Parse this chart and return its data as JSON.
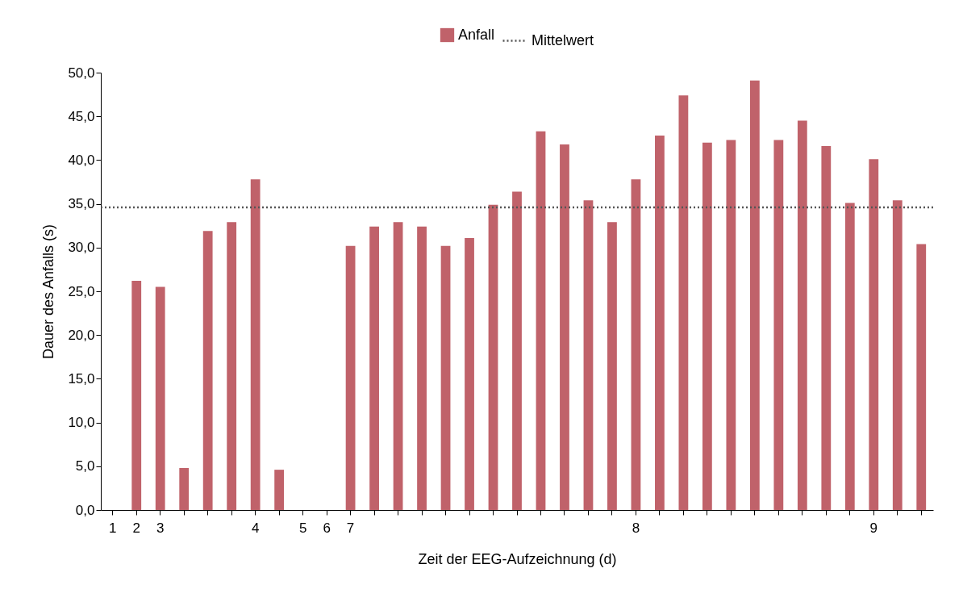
{
  "chart_data": {
    "type": "bar",
    "xlabel": "Zeit der EEG-Aufzeichnung (d)",
    "ylabel": "Dauer des Anfalls (s)",
    "categories": [
      "1",
      "2",
      "3",
      null,
      null,
      null,
      "4",
      null,
      "5",
      "6",
      "7",
      null,
      null,
      null,
      null,
      null,
      null,
      null,
      null,
      null,
      null,
      null,
      "8",
      null,
      null,
      null,
      null,
      null,
      null,
      null,
      null,
      null,
      "9",
      null,
      null
    ],
    "series": [
      {
        "name": "Anfall",
        "color": "#c0626a",
        "values": [
          0,
          26.2,
          25.5,
          4.8,
          31.9,
          32.9,
          37.8,
          4.6,
          0,
          0,
          30.2,
          32.4,
          32.9,
          32.4,
          30.2,
          31.1,
          34.9,
          36.4,
          43.3,
          41.8,
          35.4,
          32.9,
          37.8,
          42.8,
          47.4,
          42.0,
          42.3,
          49.1,
          42.3,
          44.5,
          41.6,
          35.1,
          40.1,
          35.4,
          30.4
        ]
      }
    ],
    "ylim": [
      0,
      50
    ],
    "yticks": [
      {
        "value": 0,
        "label": "0,0"
      },
      {
        "value": 5,
        "label": "5,0"
      },
      {
        "value": 10,
        "label": "10,0"
      },
      {
        "value": 15,
        "label": "15,0"
      },
      {
        "value": 20,
        "label": "20,0"
      },
      {
        "value": 25,
        "label": "25,0"
      },
      {
        "value": 30,
        "label": "30,0"
      },
      {
        "value": 35,
        "label": "35,0"
      },
      {
        "value": 40,
        "label": "40,0"
      },
      {
        "value": 45,
        "label": "45,0"
      },
      {
        "value": 50,
        "label": "50,0"
      }
    ],
    "ref_lines": [
      {
        "axis": "y",
        "value": 34.6,
        "label": "Mittelwert",
        "color": "#555555",
        "line_style": "dotted"
      }
    ],
    "legend": "top",
    "grid": false
  }
}
